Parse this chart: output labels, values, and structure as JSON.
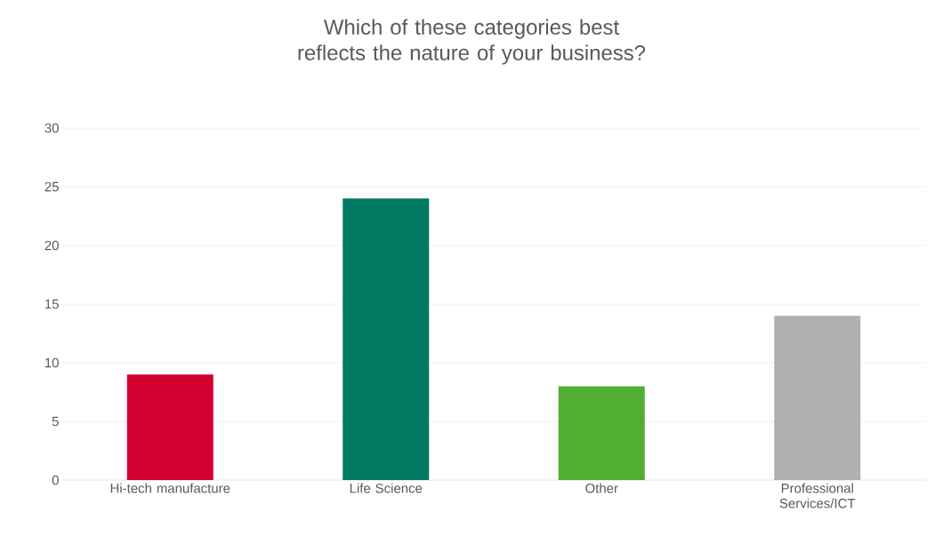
{
  "chart_data": {
    "type": "bar",
    "title": "Which of these categories best reflects the nature of your business?",
    "categories": [
      "Hi-tech manufacture",
      "Life Science",
      "Other",
      "Professional Services/ICT"
    ],
    "values": [
      9,
      24,
      8,
      14
    ],
    "colors": [
      "#d50032",
      "#007a63",
      "#52ae32",
      "#b0b0b0"
    ],
    "ylim": [
      0,
      30
    ],
    "yticks": [
      0,
      5,
      10,
      15,
      20,
      25,
      30
    ],
    "grid": "y"
  }
}
